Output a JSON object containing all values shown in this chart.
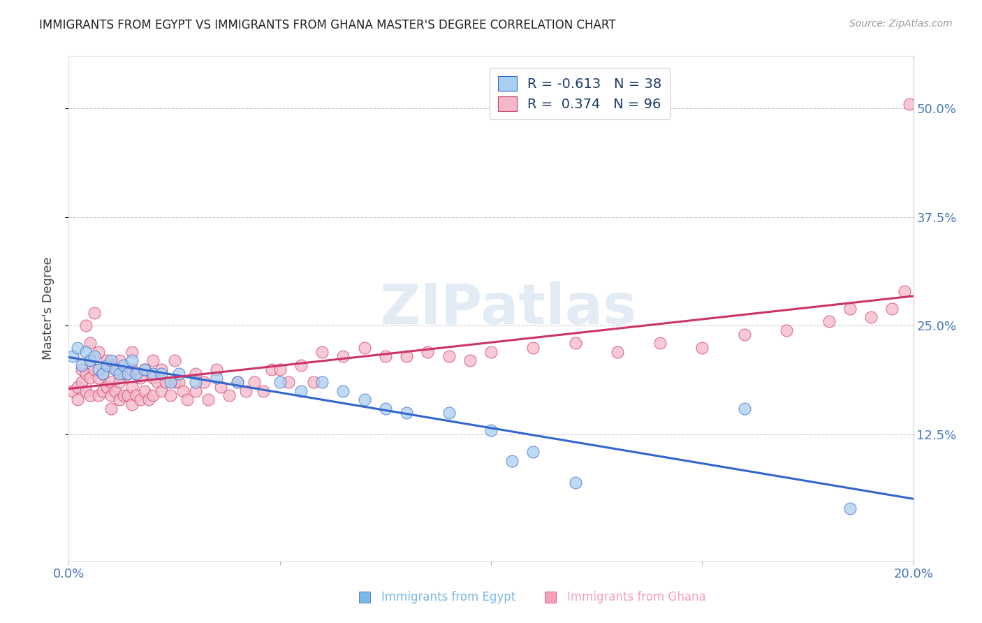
{
  "title": "IMMIGRANTS FROM EGYPT VS IMMIGRANTS FROM GHANA MASTER'S DEGREE CORRELATION CHART",
  "source": "Source: ZipAtlas.com",
  "ylabel": "Master's Degree",
  "yticks": [
    "50.0%",
    "37.5%",
    "25.0%",
    "12.5%"
  ],
  "ytick_vals": [
    0.5,
    0.375,
    0.25,
    0.125
  ],
  "xlim": [
    0.0,
    0.2
  ],
  "ylim": [
    -0.02,
    0.56
  ],
  "egypt_color": "#a8cff0",
  "ghana_color": "#f5b8c8",
  "egypt_line_color": "#3366cc",
  "ghana_line_color": "#cc3366",
  "egypt_R": -0.613,
  "egypt_N": 38,
  "ghana_R": 0.374,
  "ghana_N": 96,
  "watermark": "ZIPatlas",
  "egypt_x": [
    0.001,
    0.002,
    0.003,
    0.004,
    0.005,
    0.006,
    0.007,
    0.008,
    0.009,
    0.01,
    0.011,
    0.012,
    0.013,
    0.014,
    0.015,
    0.016,
    0.018,
    0.02,
    0.022,
    0.024,
    0.026,
    0.03,
    0.035,
    0.04,
    0.05,
    0.055,
    0.06,
    0.065,
    0.07,
    0.075,
    0.08,
    0.09,
    0.1,
    0.105,
    0.11,
    0.12,
    0.16,
    0.185
  ],
  "egypt_y": [
    0.215,
    0.225,
    0.205,
    0.22,
    0.21,
    0.215,
    0.2,
    0.195,
    0.205,
    0.21,
    0.2,
    0.195,
    0.205,
    0.195,
    0.21,
    0.195,
    0.2,
    0.195,
    0.195,
    0.185,
    0.195,
    0.185,
    0.19,
    0.185,
    0.185,
    0.175,
    0.185,
    0.175,
    0.165,
    0.155,
    0.15,
    0.15,
    0.13,
    0.095,
    0.105,
    0.07,
    0.155,
    0.04
  ],
  "ghana_x": [
    0.001,
    0.002,
    0.002,
    0.003,
    0.003,
    0.004,
    0.004,
    0.004,
    0.005,
    0.005,
    0.005,
    0.005,
    0.006,
    0.006,
    0.007,
    0.007,
    0.007,
    0.008,
    0.008,
    0.009,
    0.009,
    0.01,
    0.01,
    0.01,
    0.01,
    0.011,
    0.011,
    0.012,
    0.012,
    0.012,
    0.013,
    0.013,
    0.014,
    0.014,
    0.015,
    0.015,
    0.015,
    0.015,
    0.016,
    0.016,
    0.017,
    0.017,
    0.018,
    0.018,
    0.019,
    0.02,
    0.02,
    0.02,
    0.021,
    0.022,
    0.022,
    0.023,
    0.024,
    0.025,
    0.025,
    0.026,
    0.027,
    0.028,
    0.03,
    0.03,
    0.032,
    0.033,
    0.035,
    0.036,
    0.038,
    0.04,
    0.042,
    0.044,
    0.046,
    0.048,
    0.05,
    0.052,
    0.055,
    0.058,
    0.06,
    0.065,
    0.07,
    0.075,
    0.08,
    0.085,
    0.09,
    0.095,
    0.1,
    0.11,
    0.12,
    0.13,
    0.14,
    0.15,
    0.16,
    0.17,
    0.18,
    0.185,
    0.19,
    0.195,
    0.198,
    0.199
  ],
  "ghana_y": [
    0.175,
    0.18,
    0.165,
    0.2,
    0.185,
    0.25,
    0.195,
    0.175,
    0.23,
    0.21,
    0.19,
    0.17,
    0.265,
    0.2,
    0.22,
    0.19,
    0.17,
    0.195,
    0.175,
    0.21,
    0.18,
    0.205,
    0.185,
    0.17,
    0.155,
    0.2,
    0.175,
    0.21,
    0.185,
    0.165,
    0.195,
    0.17,
    0.195,
    0.17,
    0.22,
    0.2,
    0.18,
    0.16,
    0.195,
    0.17,
    0.19,
    0.165,
    0.2,
    0.175,
    0.165,
    0.21,
    0.19,
    0.17,
    0.185,
    0.2,
    0.175,
    0.185,
    0.17,
    0.21,
    0.185,
    0.185,
    0.175,
    0.165,
    0.195,
    0.175,
    0.185,
    0.165,
    0.2,
    0.18,
    0.17,
    0.185,
    0.175,
    0.185,
    0.175,
    0.2,
    0.2,
    0.185,
    0.205,
    0.185,
    0.22,
    0.215,
    0.225,
    0.215,
    0.215,
    0.22,
    0.215,
    0.21,
    0.22,
    0.225,
    0.23,
    0.22,
    0.23,
    0.225,
    0.24,
    0.245,
    0.255,
    0.27,
    0.26,
    0.27,
    0.29,
    0.505
  ],
  "background_color": "#ffffff",
  "grid_color": "#cccccc",
  "title_color": "#222222",
  "tick_label_color": "#4477bb",
  "legend_text_color": "#1a3a6b",
  "bottom_legend_egypt_color": "#7ab8e8",
  "bottom_legend_ghana_color": "#f5a0b8"
}
